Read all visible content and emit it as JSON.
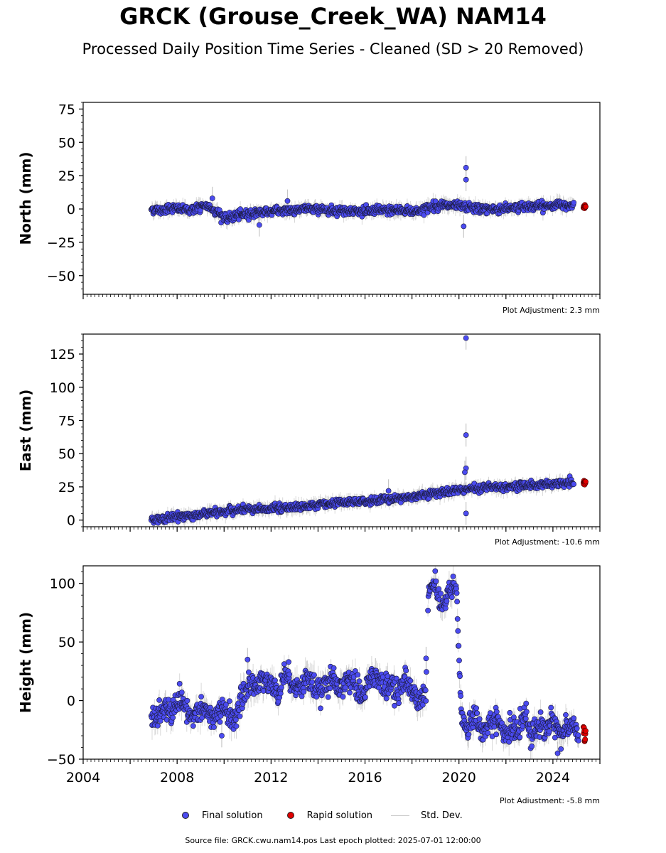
{
  "title": "GRCK (Grouse_Creek_WA) NAM14",
  "subtitle": "Processed Daily Position Time Series - Cleaned (SD > 20 Removed)",
  "footer": "Source file: GRCK.cwu.nam14.pos  Last epoch plotted: 2025-07-01 12:00:00",
  "colors": {
    "final": "#4b4bf0",
    "rapid": "#e00000",
    "stddev": "#c8c8c8",
    "edge": "#1a1a3a"
  },
  "legend": [
    {
      "label": "Final solution",
      "kind": "dot",
      "color": "#4b4bf0"
    },
    {
      "label": "Rapid solution",
      "kind": "dot",
      "color": "#e00000"
    },
    {
      "label": "Std. Dev.",
      "kind": "line",
      "color": "#c8c8c8"
    }
  ],
  "chart_data": [
    {
      "type": "scatter",
      "ylabel": "North (mm)",
      "xlim": [
        2004,
        2026
      ],
      "ylim": [
        -64,
        80
      ],
      "yticks": [
        -50,
        -25,
        0,
        25,
        50,
        75
      ],
      "ytick_labels": [
        "−50",
        "−25",
        "0",
        "25",
        "50",
        "75"
      ],
      "xticks": [
        2004,
        2008,
        2012,
        2016,
        2020,
        2024
      ],
      "xtick_labels": [],
      "adjustment": "Plot Adjustment: 2.3 mm",
      "final_series": {
        "name": "Final solution",
        "x": [
          2006.9,
          2007.3,
          2007.7,
          2008.1,
          2008.5,
          2008.9,
          2009.3,
          2009.7,
          2010.1,
          2010.5,
          2010.9,
          2011.3,
          2011.7,
          2012.1,
          2012.5,
          2012.9,
          2013.3,
          2013.7,
          2014.1,
          2014.5,
          2014.9,
          2015.3,
          2015.7,
          2016.1,
          2016.5,
          2016.9,
          2017.3,
          2017.7,
          2018.1,
          2018.5,
          2018.9,
          2019.3,
          2019.7,
          2020.1,
          2020.5,
          2020.9,
          2021.3,
          2021.7,
          2022.1,
          2022.5,
          2022.9,
          2023.3,
          2023.7,
          2024.1,
          2024.5,
          2024.9
        ],
        "y": [
          0,
          -1,
          1,
          0,
          -1,
          1,
          2,
          -2,
          -8,
          -5,
          -4,
          -3,
          -2,
          -2,
          -1,
          -1,
          0,
          0,
          0,
          -1,
          -1,
          -1,
          -2,
          -2,
          -1,
          -1,
          -1,
          -1,
          -2,
          0,
          2,
          3,
          2,
          2,
          1,
          0,
          0,
          0,
          1,
          1,
          2,
          2,
          2,
          3,
          3,
          3
        ],
        "outliers": [
          [
            2020.3,
            31
          ],
          [
            2020.3,
            22
          ],
          [
            2020.2,
            -13
          ],
          [
            2012.7,
            6
          ],
          [
            2009.5,
            8
          ],
          [
            2011.5,
            -12
          ]
        ]
      },
      "rapid_series": {
        "name": "Rapid solution",
        "x": [
          2025.3,
          2025.4
        ],
        "y": [
          1,
          2
        ]
      }
    },
    {
      "type": "scatter",
      "ylabel": "East (mm)",
      "xlim": [
        2004,
        2026
      ],
      "ylim": [
        -5,
        140
      ],
      "yticks": [
        0,
        25,
        50,
        75,
        100,
        125
      ],
      "ytick_labels": [
        "0",
        "25",
        "50",
        "75",
        "100",
        "125"
      ],
      "xticks": [
        2004,
        2008,
        2012,
        2016,
        2020,
        2024
      ],
      "xtick_labels": [],
      "adjustment": "Plot Adjustment: -10.6 mm",
      "final_series": {
        "name": "Final solution",
        "x": [
          2006.9,
          2007.3,
          2007.7,
          2008.1,
          2008.5,
          2008.9,
          2009.3,
          2009.7,
          2010.1,
          2010.5,
          2010.9,
          2011.3,
          2011.7,
          2012.1,
          2012.5,
          2012.9,
          2013.3,
          2013.7,
          2014.1,
          2014.5,
          2014.9,
          2015.3,
          2015.7,
          2016.1,
          2016.5,
          2016.9,
          2017.3,
          2017.7,
          2018.1,
          2018.5,
          2018.9,
          2019.3,
          2019.7,
          2020.1,
          2020.5,
          2020.9,
          2021.3,
          2021.7,
          2022.1,
          2022.5,
          2022.9,
          2023.3,
          2023.7,
          2024.1,
          2024.5,
          2024.9
        ],
        "y": [
          0,
          1,
          2,
          3,
          3,
          4,
          5,
          6,
          7,
          7,
          8,
          8,
          8,
          9,
          9,
          10,
          10,
          11,
          12,
          12,
          13,
          13,
          14,
          14,
          15,
          16,
          16,
          17,
          18,
          19,
          20,
          21,
          22,
          23,
          24,
          24,
          25,
          25,
          25,
          26,
          26,
          26,
          27,
          27,
          28,
          28
        ],
        "outliers": [
          [
            2020.3,
            137
          ],
          [
            2020.3,
            64
          ],
          [
            2020.3,
            39
          ],
          [
            2020.25,
            36
          ],
          [
            2020.3,
            5
          ],
          [
            2017.0,
            22
          ]
        ]
      },
      "rapid_series": {
        "name": "Rapid solution",
        "x": [
          2025.3,
          2025.4
        ],
        "y": [
          28,
          29
        ]
      }
    },
    {
      "type": "scatter",
      "ylabel": "Height (mm)",
      "xlim": [
        2004,
        2026
      ],
      "ylim": [
        -50,
        115
      ],
      "yticks": [
        -50,
        0,
        50,
        100
      ],
      "ytick_labels": [
        "−50",
        "0",
        "50",
        "100"
      ],
      "xticks": [
        2004,
        2008,
        2012,
        2016,
        2020,
        2024
      ],
      "xtick_labels": [
        "2004",
        "2008",
        "2012",
        "2016",
        "2020",
        "2024"
      ],
      "adjustment": "Plot Adjustment: -5.8 mm",
      "final_series": {
        "name": "Final solution",
        "x": [
          2006.9,
          2007.2,
          2007.5,
          2007.8,
          2008.1,
          2008.4,
          2008.7,
          2009.0,
          2009.3,
          2009.6,
          2009.9,
          2010.2,
          2010.5,
          2010.8,
          2011.1,
          2011.4,
          2011.7,
          2012.0,
          2012.3,
          2012.6,
          2012.9,
          2013.2,
          2013.5,
          2013.8,
          2014.1,
          2014.4,
          2014.7,
          2015.0,
          2015.3,
          2015.6,
          2015.9,
          2016.2,
          2016.5,
          2016.8,
          2017.1,
          2017.4,
          2017.7,
          2018.0,
          2018.3,
          2018.6,
          2018.7,
          2018.85,
          2019.0,
          2019.15,
          2019.3,
          2019.45,
          2019.6,
          2019.75,
          2019.9,
          2020.1,
          2020.4,
          2020.7,
          2021.0,
          2021.3,
          2021.6,
          2021.9,
          2022.2,
          2022.5,
          2022.8,
          2023.1,
          2023.4,
          2023.7,
          2024.0,
          2024.3,
          2024.6,
          2024.9,
          2025.1
        ],
        "y": [
          -10,
          -15,
          -5,
          -12,
          -2,
          -8,
          -15,
          -5,
          -10,
          -18,
          -6,
          -12,
          -15,
          5,
          15,
          10,
          20,
          15,
          5,
          25,
          15,
          10,
          20,
          12,
          5,
          18,
          15,
          8,
          20,
          12,
          5,
          18,
          22,
          10,
          15,
          5,
          20,
          8,
          2,
          10,
          92,
          98,
          103,
          88,
          80,
          85,
          95,
          98,
          92,
          -15,
          -25,
          -10,
          -30,
          -20,
          -15,
          -28,
          -25,
          -30,
          -10,
          -30,
          -20,
          -25,
          -15,
          -30,
          -25,
          -20,
          -30
        ],
        "outliers": [
          [
            2018.6,
            36
          ],
          [
            2009.9,
            -30
          ],
          [
            2024.2,
            -45
          ],
          [
            2008.2,
            7
          ],
          [
            2011.0,
            35
          ]
        ]
      },
      "rapid_series": {
        "name": "Rapid solution",
        "x": [
          2025.3,
          2025.35,
          2025.4
        ],
        "y": [
          -25,
          -32,
          -28
        ]
      }
    }
  ]
}
